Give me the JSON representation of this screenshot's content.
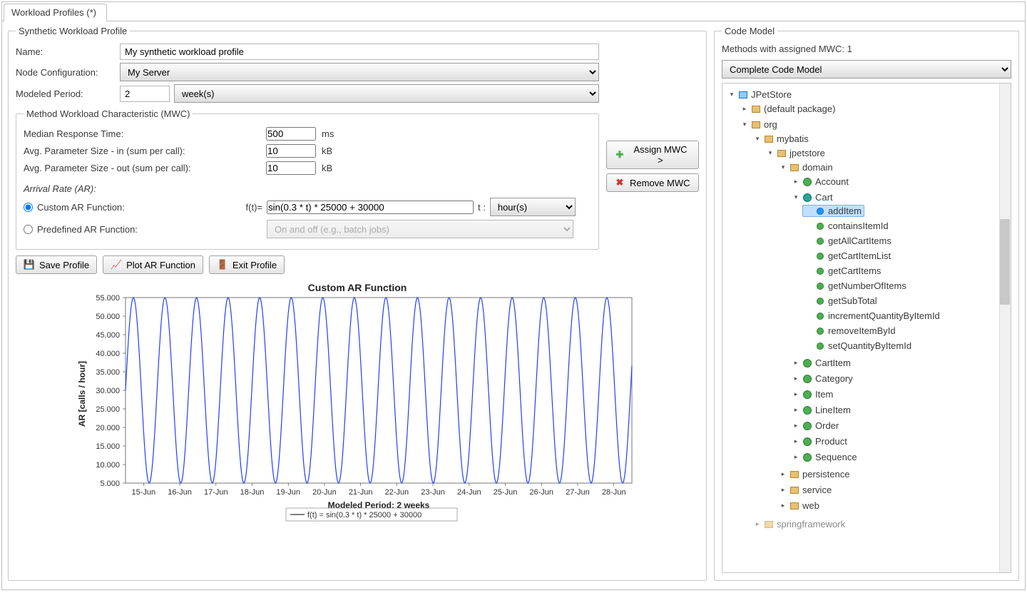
{
  "tab": {
    "title": "Workload Profiles (*)"
  },
  "profile": {
    "legend": "Synthetic Workload Profile",
    "name_label": "Name:",
    "name_value": "My synthetic workload profile",
    "nodecfg_label": "Node Configuration:",
    "nodecfg_value": "My Server",
    "period_label": "Modeled Period:",
    "period_value": "2",
    "period_unit": "week(s)"
  },
  "mwc": {
    "legend": "Method Workload Characteristic (MWC)",
    "resp_label": "Median Response Time:",
    "resp_value": "500",
    "resp_unit": "ms",
    "pin_label": "Avg. Parameter Size - in (sum per call):",
    "pin_value": "10",
    "pin_unit": "kB",
    "pout_label": "Avg. Parameter Size - out (sum per call):",
    "pout_value": "10",
    "pout_unit": "kB",
    "ar_heading": "Arrival Rate (AR):",
    "custom_label": "Custom AR Function:",
    "ft_label": "f(t)=",
    "ft_value": "sin(0.3 * t) * 25000 + 30000",
    "t_label": "t :",
    "t_unit": "hour(s)",
    "predef_label": "Predefined AR Function:",
    "predef_value": "On and off (e.g., batch jobs)"
  },
  "buttons": {
    "assign": "Assign MWC >",
    "remove": "Remove MWC",
    "save": "Save Profile",
    "plot": "Plot AR Function",
    "exit": "Exit Profile"
  },
  "chart": {
    "type": "line",
    "title": "Custom AR Function",
    "ylabel": "AR  [calls / hour]",
    "xlabel": "Modeled Period: 2 weeks",
    "legend": "f(t) = sin(0.3 * t) * 25000 + 30000",
    "line_color": "#1f3fff",
    "background_color": "#ffffff",
    "axis_color": "#555555",
    "title_fontsize": 14,
    "label_fontsize": 12,
    "tick_fontsize": 11,
    "ylim": [
      5000,
      55000
    ],
    "ytick_step": 5000,
    "xticks": [
      "15-Jun",
      "16-Jun",
      "17-Jun",
      "18-Jun",
      "19-Jun",
      "20-Jun",
      "21-Jun",
      "22-Jun",
      "23-Jun",
      "24-Jun",
      "25-Jun",
      "26-Jun",
      "27-Jun",
      "28-Jun"
    ],
    "t_range_hours": [
      0,
      336
    ],
    "function": "sin(0.3*t)*25000+30000"
  },
  "codeModel": {
    "legend": "Code Model",
    "status": "Methods with assigned MWC: 1",
    "combo": "Complete Code Model",
    "selected_method": "addItem",
    "tree": {
      "root": "JPetStore",
      "default_pkg": "(default package)",
      "org": "org",
      "mybatis": "mybatis",
      "jpetstore": "jpetstore",
      "domain": "domain",
      "classes": {
        "Account": "Account",
        "Cart": "Cart",
        "CartItem": "CartItem",
        "Category": "Category",
        "Item": "Item",
        "LineItem": "LineItem",
        "Order": "Order",
        "Product": "Product",
        "Sequence": "Sequence"
      },
      "cart_methods": [
        "addItem",
        "containsItemId",
        "getAllCartItems",
        "getCartItemList",
        "getCartItems",
        "getNumberOfItems",
        "getSubTotal",
        "incrementQuantityByItemId",
        "removeItemById",
        "setQuantityByItemId"
      ],
      "persistence": "persistence",
      "service": "service",
      "web": "web",
      "springframework": "springframework"
    }
  }
}
